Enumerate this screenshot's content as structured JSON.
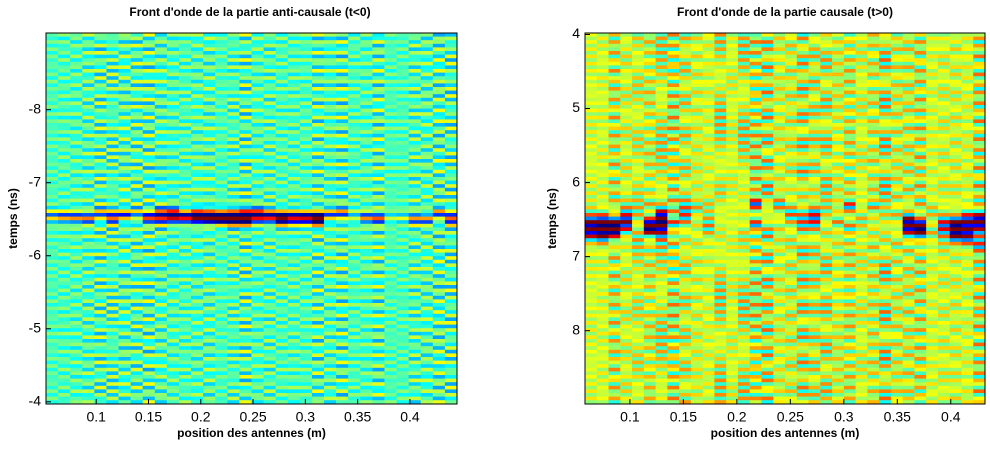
{
  "chart_data": [
    {
      "type": "heatmap",
      "title": "Front d'onde de la partie anti-causale (t<0)",
      "xlabel": "position des antennes (m)",
      "ylabel": "temps (ns)",
      "xlim": [
        0.052,
        0.445
      ],
      "xticks": [
        0.1,
        0.15,
        0.2,
        0.25,
        0.3,
        0.35,
        0.4
      ],
      "ylim": [
        -9.05,
        -3.97
      ],
      "yticks": [
        -8,
        -7,
        -6,
        -5,
        -4
      ],
      "y_reversed": true
    },
    {
      "type": "heatmap",
      "title": "Front d'onde de la partie causale (t>0)",
      "xlabel": "position des antennes (m)",
      "ylabel": "temps (ns)",
      "xlim": [
        0.058,
        0.432
      ],
      "xticks": [
        0.1,
        0.15,
        0.2,
        0.25,
        0.3,
        0.35,
        0.4
      ],
      "ylim": [
        3.98,
        8.99
      ],
      "yticks": [
        4,
        5,
        6,
        7,
        8
      ],
      "y_reversed": true
    }
  ]
}
